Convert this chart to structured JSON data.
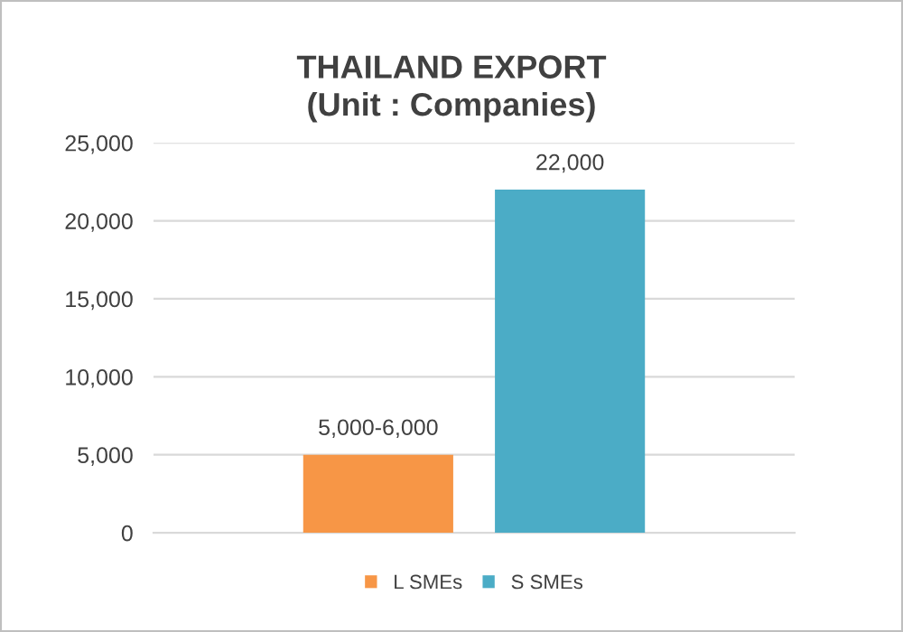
{
  "chart_data": {
    "type": "bar",
    "title": "THAILAND EXPORT\n(Unit : Companies)",
    "categories": [
      null
    ],
    "series": [
      {
        "name": "L SMEs",
        "color": "#f79646",
        "values": [
          5000
        ],
        "value_labels": [
          "5,000-6,000"
        ]
      },
      {
        "name": "S SMEs",
        "color": "#4bacc6",
        "values": [
          22000
        ],
        "value_labels": [
          "22,000"
        ]
      }
    ],
    "ylim": [
      0,
      25000
    ],
    "yticks": [
      0,
      {
        "value": 5000,
        "label": "5,000"
      },
      {
        "value": 10000,
        "label": "10,000"
      },
      {
        "value": 15000,
        "label": "15,000"
      },
      {
        "value": 20000,
        "label": "20,000"
      },
      {
        "value": 25000,
        "label": "25,000"
      }
    ],
    "grid": "y",
    "legend": "bottom"
  }
}
